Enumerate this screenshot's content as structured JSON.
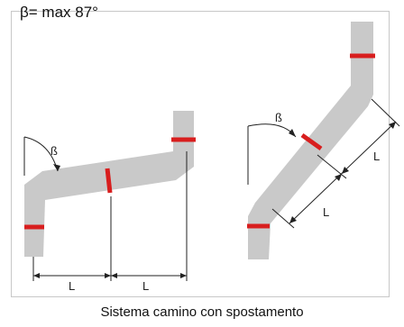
{
  "header": {
    "formula": "β= max 87°"
  },
  "caption": "Sistema camino con spostamento",
  "labels": {
    "angle": "ß",
    "length": "L"
  },
  "colors": {
    "pipe": "#c9c9c9",
    "joint": "#d81e1e",
    "line": "#222222",
    "frame": "#c8c8c8"
  }
}
